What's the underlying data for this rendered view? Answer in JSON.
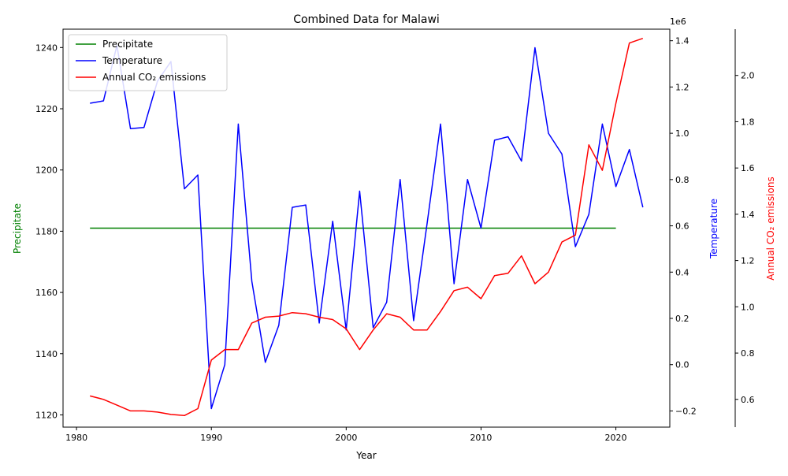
{
  "chart_data": {
    "type": "line",
    "title": "Combined Data for Malawi",
    "xlabel": "Year",
    "xlim": [
      1979,
      2024
    ],
    "x_ticks": [
      1980,
      1990,
      2000,
      2010,
      2020
    ],
    "legend_position": "top-left",
    "grid": false,
    "axes": [
      {
        "id": "precip",
        "label": "Precipitate",
        "color": "#008000",
        "side": "left",
        "ylim": [
          1116,
          1246
        ],
        "ticks": [
          1120,
          1140,
          1160,
          1180,
          1200,
          1220,
          1240
        ]
      },
      {
        "id": "temp",
        "label": "Temperature",
        "color": "#0000ff",
        "side": "right",
        "ylim": [
          -270000,
          1450000
        ],
        "ticks": [
          -200000,
          0,
          200000,
          400000,
          600000,
          800000,
          1000000,
          1200000,
          1400000
        ],
        "tick_labels": [
          "−0.2",
          "0.0",
          "0.2",
          "0.4",
          "0.6",
          "0.8",
          "1.0",
          "1.2",
          "1.4"
        ],
        "offset_text": "1e6"
      },
      {
        "id": "co2",
        "label": "Annual CO₂ emissions",
        "color": "#ff0000",
        "side": "right-outer",
        "ylim": [
          480000,
          2200000
        ],
        "ticks": [
          600000,
          800000,
          1000000,
          1200000,
          1400000,
          1600000,
          1800000,
          2000000
        ],
        "tick_labels": [
          "0.6",
          "0.8",
          "1.0",
          "1.2",
          "1.4",
          "1.6",
          "1.8",
          "2.0"
        ]
      }
    ],
    "series": [
      {
        "name": "Precipitate",
        "axis": "precip",
        "color": "#008000",
        "x": [
          1981,
          1982,
          1983,
          1984,
          1985,
          1986,
          1987,
          1988,
          1989,
          1990,
          1991,
          1992,
          1993,
          1994,
          1995,
          1996,
          1997,
          1998,
          1999,
          2000,
          2001,
          2002,
          2003,
          2004,
          2005,
          2006,
          2007,
          2008,
          2009,
          2010,
          2011,
          2012,
          2013,
          2014,
          2015,
          2016,
          2017,
          2018,
          2019,
          2020
        ],
        "y": [
          1181,
          1181,
          1181,
          1181,
          1181,
          1181,
          1181,
          1181,
          1181,
          1181,
          1181,
          1181,
          1181,
          1181,
          1181,
          1181,
          1181,
          1181,
          1181,
          1181,
          1181,
          1181,
          1181,
          1181,
          1181,
          1181,
          1181,
          1181,
          1181,
          1181,
          1181,
          1181,
          1181,
          1181,
          1181,
          1181,
          1181,
          1181,
          1181,
          1181
        ]
      },
      {
        "name": "Temperature",
        "axis": "temp",
        "color": "#0000ff",
        "x": [
          1981,
          1982,
          1983,
          1984,
          1985,
          1986,
          1987,
          1988,
          1989,
          1990,
          1991,
          1992,
          1993,
          1994,
          1995,
          1996,
          1997,
          1998,
          1999,
          2000,
          2001,
          2002,
          2003,
          2004,
          2005,
          2006,
          2007,
          2008,
          2009,
          2010,
          2011,
          2012,
          2013,
          2014,
          2015,
          2016,
          2017,
          2018,
          2019,
          2020,
          2021,
          2022
        ],
        "y": [
          1130000,
          1140000,
          1380000,
          1020000,
          1025000,
          1225000,
          1310000,
          760000,
          820000,
          -190000,
          0,
          1040000,
          360000,
          10000,
          170000,
          680000,
          690000,
          180000,
          620000,
          150000,
          750000,
          160000,
          270000,
          800000,
          190000,
          610000,
          1040000,
          350000,
          800000,
          590000,
          970000,
          985000,
          880000,
          1370000,
          1000000,
          910000,
          510000,
          650000,
          1040000,
          770000,
          930000,
          680000
        ]
      },
      {
        "name": "Annual CO₂ emissions",
        "axis": "co2",
        "color": "#ff0000",
        "x": [
          1981,
          1982,
          1983,
          1984,
          1985,
          1986,
          1987,
          1988,
          1989,
          1990,
          1991,
          1992,
          1993,
          1994,
          1995,
          1996,
          1997,
          1998,
          1999,
          2000,
          2001,
          2002,
          2003,
          2004,
          2005,
          2006,
          2007,
          2008,
          2009,
          2010,
          2011,
          2012,
          2013,
          2014,
          2015,
          2016,
          2017,
          2018,
          2019,
          2020,
          2021,
          2022
        ],
        "y": [
          615000,
          600000,
          575000,
          550000,
          550000,
          545000,
          535000,
          530000,
          560000,
          770000,
          815000,
          815000,
          930000,
          955000,
          960000,
          975000,
          970000,
          955000,
          945000,
          905000,
          815000,
          900000,
          970000,
          955000,
          900000,
          900000,
          980000,
          1070000,
          1085000,
          1035000,
          1135000,
          1145000,
          1220000,
          1100000,
          1150000,
          1280000,
          1310000,
          1700000,
          1590000,
          1880000,
          2140000,
          2160000
        ]
      }
    ]
  }
}
